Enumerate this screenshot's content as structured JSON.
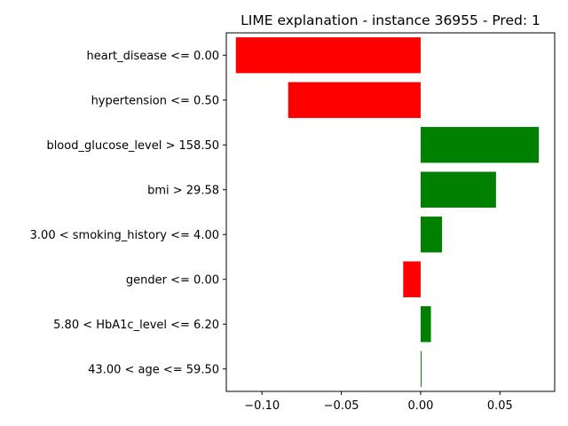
{
  "chart_data": {
    "type": "bar",
    "orientation": "horizontal",
    "title": "LIME explanation - instance 36955 - Pred: 1",
    "xlabel": "",
    "ylabel": "",
    "categories": [
      "heart_disease <= 0.00",
      "hypertension <= 0.50",
      "blood_glucose_level > 158.50",
      "bmi > 29.58",
      "3.00 < smoking_history <= 4.00",
      "gender <= 0.00",
      "5.80 < HbA1c_level <= 6.20",
      "43.00 < age <= 59.50"
    ],
    "values": [
      -0.1165,
      -0.0835,
      0.0745,
      0.0475,
      0.0135,
      -0.011,
      0.0065,
      0.0005
    ],
    "xlim": [
      -0.1225,
      0.0845
    ],
    "xticks": [
      -0.1,
      -0.05,
      0.0,
      0.05
    ],
    "xtick_labels": [
      "−0.10",
      "−0.05",
      "0.00",
      "0.05"
    ],
    "grid": false,
    "colors": {
      "positive": "#008000",
      "negative": "#ff0000",
      "axis": "#000000"
    }
  }
}
